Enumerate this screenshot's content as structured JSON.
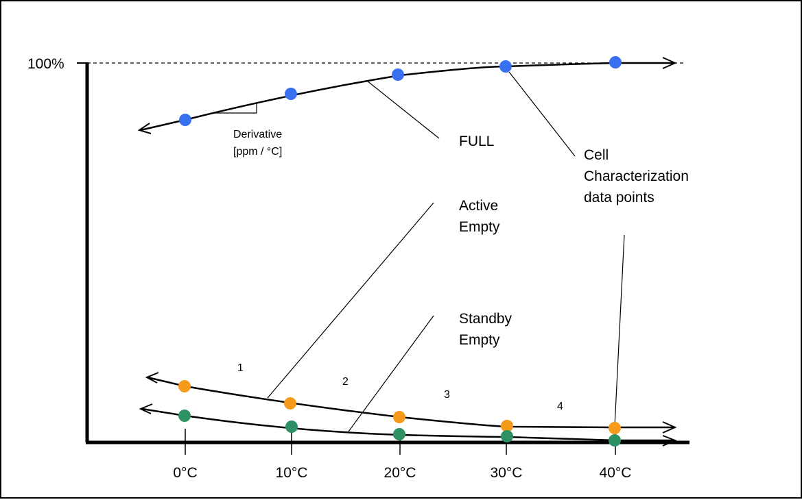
{
  "y_axis": {
    "top_label": "100%"
  },
  "x_axis": {
    "ticks": [
      "0°C",
      "10°C",
      "20°C",
      "30°C",
      "40°C"
    ]
  },
  "annotations": {
    "derivative_line1": "Derivative",
    "derivative_line2": "[ppm / °C]",
    "full": "FULL",
    "cell_line1": "Cell",
    "cell_line2": "Characterization",
    "cell_line3": "data points",
    "active_line1": "Active",
    "active_line2": "Empty",
    "standby_line1": "Standby",
    "standby_line2": "Empty"
  },
  "segment_numbers": [
    "1",
    "2",
    "3",
    "4"
  ],
  "curves": {
    "full": {
      "color": "#3a6ff0"
    },
    "active_empty": {
      "color": "#f59a1a"
    },
    "standby_empty": {
      "color": "#2e9163"
    }
  }
}
